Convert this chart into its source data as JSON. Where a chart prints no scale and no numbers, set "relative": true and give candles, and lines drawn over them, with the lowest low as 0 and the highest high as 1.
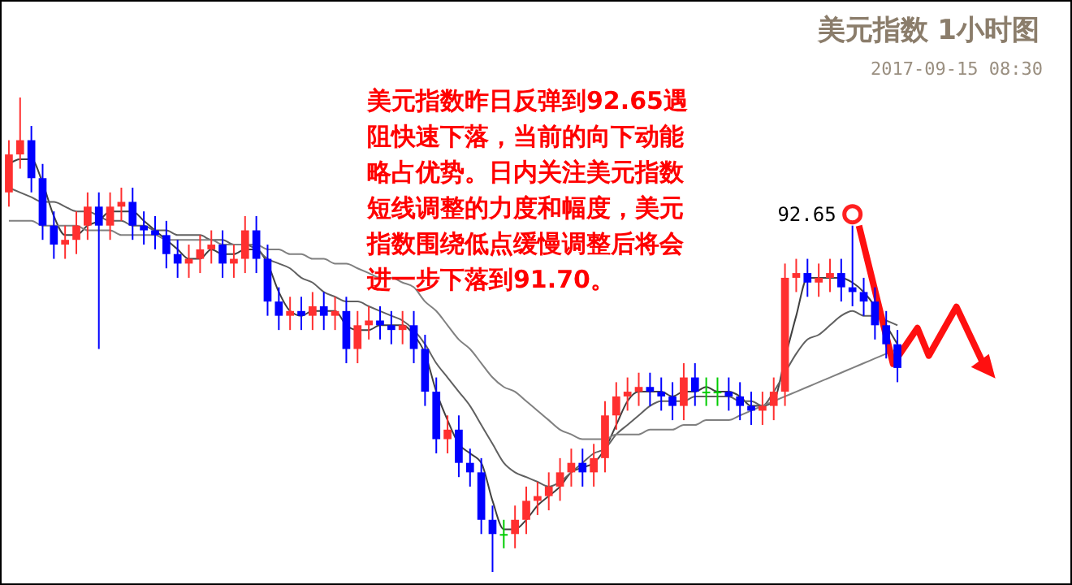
{
  "chart_data": {
    "type": "candlestick",
    "title": "美元指数 1小时图",
    "subtitle": "2017-09-15 08:30",
    "relative": true,
    "annotations": [
      "美元指数昨日反弹到92.65遇阻快速下落，当前的向下动能略占优势。日内关注美元指数短线调整的力度和幅度，美元指数围绕低点缓慢调整后将会进一步下落到91.70。",
      "92.65"
    ],
    "categories": [
      null,
      null,
      null,
      null,
      null,
      null,
      null,
      null,
      null,
      null,
      null,
      null,
      null,
      null,
      null,
      null,
      null,
      null,
      null,
      null,
      null,
      null,
      null,
      null,
      null,
      null,
      null,
      null,
      null,
      null,
      null,
      null,
      null,
      null,
      null,
      null,
      null,
      null,
      null,
      null,
      null,
      null,
      null,
      null,
      null,
      null,
      null,
      null,
      null,
      null,
      null,
      null,
      null,
      null,
      null,
      null,
      null,
      null,
      null,
      null,
      null,
      null,
      null,
      null,
      null,
      null,
      null,
      null,
      null,
      null,
      null,
      null,
      null,
      null,
      null,
      null,
      null,
      null,
      null,
      null
    ],
    "ohlc": [
      [
        0.8,
        0.91,
        0.77,
        0.88
      ],
      [
        0.88,
        1.0,
        0.85,
        0.91
      ],
      [
        0.91,
        0.94,
        0.8,
        0.83
      ],
      [
        0.83,
        0.86,
        0.7,
        0.73
      ],
      [
        0.73,
        0.76,
        0.66,
        0.69
      ],
      [
        0.69,
        0.73,
        0.66,
        0.7
      ],
      [
        0.7,
        0.76,
        0.67,
        0.73
      ],
      [
        0.73,
        0.8,
        0.7,
        0.77
      ],
      [
        0.77,
        0.8,
        0.47,
        0.73
      ],
      [
        0.73,
        0.8,
        0.7,
        0.77
      ],
      [
        0.77,
        0.81,
        0.74,
        0.78
      ],
      [
        0.78,
        0.81,
        0.7,
        0.73
      ],
      [
        0.73,
        0.76,
        0.69,
        0.72
      ],
      [
        0.72,
        0.75,
        0.68,
        0.71
      ],
      [
        0.71,
        0.74,
        0.64,
        0.67
      ],
      [
        0.67,
        0.7,
        0.62,
        0.65
      ],
      [
        0.65,
        0.69,
        0.62,
        0.66
      ],
      [
        0.66,
        0.71,
        0.63,
        0.68
      ],
      [
        0.68,
        0.72,
        0.65,
        0.69
      ],
      [
        0.69,
        0.72,
        0.62,
        0.65
      ],
      [
        0.65,
        0.69,
        0.62,
        0.66
      ],
      [
        0.66,
        0.75,
        0.63,
        0.72
      ],
      [
        0.72,
        0.75,
        0.63,
        0.66
      ],
      [
        0.66,
        0.69,
        0.54,
        0.57
      ],
      [
        0.57,
        0.6,
        0.51,
        0.54
      ],
      [
        0.54,
        0.58,
        0.51,
        0.55
      ],
      [
        0.55,
        0.58,
        0.51,
        0.54
      ],
      [
        0.54,
        0.59,
        0.51,
        0.56
      ],
      [
        0.56,
        0.59,
        0.51,
        0.54
      ],
      [
        0.54,
        0.58,
        0.51,
        0.55
      ],
      [
        0.55,
        0.58,
        0.44,
        0.47
      ],
      [
        0.47,
        0.55,
        0.44,
        0.52
      ],
      [
        0.52,
        0.56,
        0.49,
        0.53
      ],
      [
        0.53,
        0.56,
        0.49,
        0.52
      ],
      [
        0.52,
        0.55,
        0.48,
        0.51
      ],
      [
        0.51,
        0.55,
        0.48,
        0.52
      ],
      [
        0.52,
        0.55,
        0.44,
        0.47
      ],
      [
        0.47,
        0.5,
        0.35,
        0.38
      ],
      [
        0.38,
        0.41,
        0.25,
        0.28
      ],
      [
        0.28,
        0.33,
        0.25,
        0.3
      ],
      [
        0.3,
        0.33,
        0.2,
        0.23
      ],
      [
        0.23,
        0.26,
        0.18,
        0.21
      ],
      [
        0.21,
        0.24,
        0.08,
        0.11
      ],
      [
        0.11,
        0.14,
        0.0,
        0.08
      ],
      [
        0.08,
        0.11,
        0.05,
        0.08
      ],
      [
        0.08,
        0.14,
        0.05,
        0.11
      ],
      [
        0.11,
        0.18,
        0.08,
        0.15
      ],
      [
        0.15,
        0.19,
        0.12,
        0.16
      ],
      [
        0.16,
        0.21,
        0.13,
        0.18
      ],
      [
        0.18,
        0.24,
        0.15,
        0.21
      ],
      [
        0.21,
        0.26,
        0.18,
        0.23
      ],
      [
        0.23,
        0.26,
        0.18,
        0.21
      ],
      [
        0.21,
        0.27,
        0.18,
        0.24
      ],
      [
        0.24,
        0.36,
        0.21,
        0.33
      ],
      [
        0.33,
        0.4,
        0.3,
        0.37
      ],
      [
        0.37,
        0.41,
        0.34,
        0.38
      ],
      [
        0.38,
        0.42,
        0.35,
        0.39
      ],
      [
        0.39,
        0.42,
        0.35,
        0.38
      ],
      [
        0.38,
        0.41,
        0.34,
        0.37
      ],
      [
        0.37,
        0.4,
        0.32,
        0.35
      ],
      [
        0.35,
        0.44,
        0.32,
        0.41
      ],
      [
        0.41,
        0.44,
        0.35,
        0.38
      ],
      [
        0.38,
        0.41,
        0.35,
        0.38
      ],
      [
        0.38,
        0.41,
        0.35,
        0.38
      ],
      [
        0.38,
        0.41,
        0.34,
        0.37
      ],
      [
        0.37,
        0.4,
        0.32,
        0.35
      ],
      [
        0.35,
        0.38,
        0.31,
        0.34
      ],
      [
        0.34,
        0.38,
        0.31,
        0.35
      ],
      [
        0.35,
        0.41,
        0.32,
        0.38
      ],
      [
        0.38,
        0.65,
        0.35,
        0.62
      ],
      [
        0.62,
        0.66,
        0.59,
        0.63
      ],
      [
        0.63,
        0.66,
        0.58,
        0.61
      ],
      [
        0.61,
        0.65,
        0.58,
        0.62
      ],
      [
        0.62,
        0.66,
        0.59,
        0.63
      ],
      [
        0.63,
        0.66,
        0.57,
        0.6
      ],
      [
        0.6,
        0.73,
        0.56,
        0.59
      ],
      [
        0.59,
        0.62,
        0.54,
        0.57
      ],
      [
        0.57,
        0.6,
        0.49,
        0.52
      ],
      [
        0.52,
        0.55,
        0.45,
        0.48
      ],
      [
        0.48,
        0.51,
        0.4,
        0.43
      ]
    ],
    "colors": [
      "#ff3030",
      "#ff3030",
      "#0000ff",
      "#0000ff",
      "#0000ff",
      "#ff3030",
      "#ff3030",
      "#ff3030",
      "#0000ff",
      "#ff3030",
      "#ff3030",
      "#0000ff",
      "#0000ff",
      "#0000ff",
      "#0000ff",
      "#0000ff",
      "#ff3030",
      "#ff3030",
      "#ff3030",
      "#0000ff",
      "#ff3030",
      "#ff3030",
      "#0000ff",
      "#0000ff",
      "#0000ff",
      "#ff3030",
      "#0000ff",
      "#ff3030",
      "#0000ff",
      "#ff3030",
      "#0000ff",
      "#ff3030",
      "#ff3030",
      "#0000ff",
      "#0000ff",
      "#ff3030",
      "#0000ff",
      "#0000ff",
      "#0000ff",
      "#ff3030",
      "#0000ff",
      "#0000ff",
      "#0000ff",
      "#0000ff",
      "#00cc00",
      "#ff3030",
      "#ff3030",
      "#ff3030",
      "#ff3030",
      "#ff3030",
      "#ff3030",
      "#0000ff",
      "#ff3030",
      "#ff3030",
      "#ff3030",
      "#ff3030",
      "#ff3030",
      "#0000ff",
      "#0000ff",
      "#0000ff",
      "#ff3030",
      "#0000ff",
      "#00cc00",
      "#00cc00",
      "#0000ff",
      "#0000ff",
      "#0000ff",
      "#ff3030",
      "#ff3030",
      "#ff3030",
      "#ff3030",
      "#0000ff",
      "#ff3030",
      "#ff3030",
      "#0000ff",
      "#0000ff",
      "#0000ff",
      "#0000ff",
      "#0000ff",
      "#0000ff"
    ],
    "series": [
      {
        "type": "line",
        "color": "#404040",
        "values": [
          0.86,
          0.87,
          0.87,
          0.82,
          0.75,
          0.71,
          0.71,
          0.73,
          0.74,
          0.76,
          0.76,
          0.76,
          0.74,
          0.72,
          0.7,
          0.68,
          0.66,
          0.66,
          0.68,
          0.67,
          0.67,
          0.68,
          0.68,
          0.65,
          0.59,
          0.55,
          0.54,
          0.55,
          0.55,
          0.55,
          0.52,
          0.51,
          0.51,
          0.52,
          0.52,
          0.52,
          0.5,
          0.46,
          0.38,
          0.32,
          0.27,
          0.25,
          0.23,
          0.15,
          0.09,
          0.09,
          0.11,
          0.14,
          0.16,
          0.18,
          0.21,
          0.22,
          0.23,
          0.26,
          0.31,
          0.36,
          0.38,
          0.38,
          0.38,
          0.37,
          0.38,
          0.38,
          0.39,
          0.38,
          0.38,
          0.37,
          0.35,
          0.35,
          0.36,
          0.45,
          0.54,
          0.62,
          0.62,
          0.62,
          0.62,
          0.61,
          0.59,
          0.56,
          0.52,
          0.48
        ]
      },
      {
        "type": "line",
        "color": "#606060",
        "values": [
          0.81,
          0.8,
          0.79,
          0.78,
          0.78,
          0.77,
          0.76,
          0.76,
          0.75,
          0.74,
          0.74,
          0.73,
          0.73,
          0.72,
          0.72,
          0.71,
          0.71,
          0.71,
          0.7,
          0.7,
          0.69,
          0.69,
          0.68,
          0.66,
          0.65,
          0.64,
          0.62,
          0.61,
          0.59,
          0.58,
          0.57,
          0.57,
          0.56,
          0.55,
          0.54,
          0.53,
          0.51,
          0.48,
          0.44,
          0.41,
          0.38,
          0.35,
          0.31,
          0.27,
          0.23,
          0.21,
          0.2,
          0.19,
          0.18,
          0.19,
          0.21,
          0.23,
          0.25,
          0.26,
          0.29,
          0.31,
          0.33,
          0.35,
          0.36,
          0.36,
          0.36,
          0.37,
          0.37,
          0.37,
          0.37,
          0.36,
          0.36,
          0.35,
          0.38,
          0.42,
          0.46,
          0.49,
          0.5,
          0.52,
          0.54,
          0.55,
          0.54,
          0.54,
          0.53,
          0.52
        ]
      },
      {
        "type": "line",
        "color": "#808080",
        "values": [
          0.74,
          0.74,
          0.74,
          0.73,
          0.73,
          0.73,
          0.73,
          0.72,
          0.72,
          0.72,
          0.71,
          0.71,
          0.71,
          0.71,
          0.7,
          0.7,
          0.7,
          0.7,
          0.7,
          0.69,
          0.69,
          0.69,
          0.69,
          0.68,
          0.68,
          0.67,
          0.67,
          0.66,
          0.66,
          0.65,
          0.65,
          0.64,
          0.63,
          0.62,
          0.62,
          0.61,
          0.6,
          0.57,
          0.55,
          0.52,
          0.49,
          0.47,
          0.44,
          0.41,
          0.39,
          0.38,
          0.36,
          0.34,
          0.32,
          0.3,
          0.29,
          0.28,
          0.28,
          0.28,
          0.29,
          0.29,
          0.29,
          0.3,
          0.3,
          0.3,
          0.31,
          0.31,
          0.32,
          0.32,
          0.32,
          0.33,
          0.34,
          0.35,
          0.36,
          0.37,
          0.38,
          0.39,
          0.4,
          0.41,
          0.42,
          0.43,
          0.44,
          0.45,
          0.46,
          0.47
        ]
      }
    ]
  }
}
